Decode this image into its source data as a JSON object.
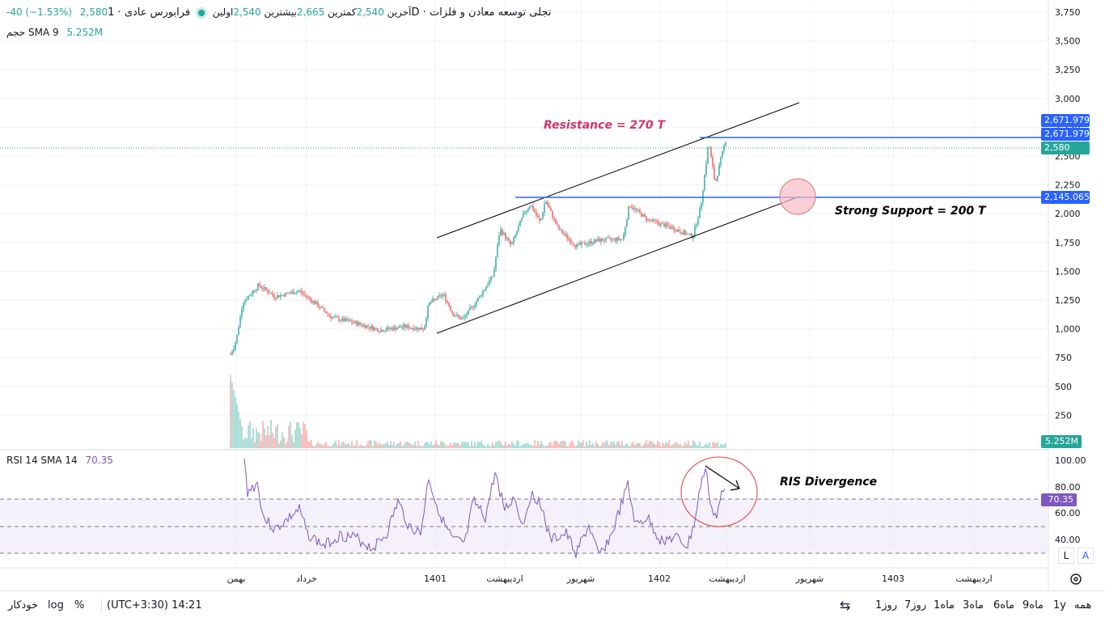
{
  "header": {
    "symbol_name": "فرابورس عادی · 1D · تجلی توسعه معادن و فلزات",
    "open_label": "اولین",
    "open_value": "2,540",
    "high_label": "بیشترین",
    "high_value": "2,665",
    "low_label": "کمترین",
    "low_value": "2,540",
    "close_label": "آخرین",
    "close_value": "2,580",
    "change": "-40  (−1.53%)"
  },
  "volume_legend": {
    "label": "حجم SMA 9",
    "value": "5.252M"
  },
  "rsi_legend": {
    "label": "RSI 14 SMA 14",
    "value": "70.35"
  },
  "price_axis": [
    "3,750",
    "3,500",
    "3,250",
    "3,000",
    "2,750",
    "2,500",
    "2,250",
    "2,000",
    "1,750",
    "1,500",
    "1,250",
    "1,000",
    "750",
    "500",
    "250"
  ],
  "rsi_axis": [
    "100.00",
    "80.00",
    "60.00",
    "40.00"
  ],
  "price_tags": {
    "upper1": "2,671.979",
    "upper2": "2,671.979",
    "last": "2,580",
    "support": "2,145.065",
    "volume": "5.252M",
    "rsi": "70.35"
  },
  "time_axis": [
    "بهمن",
    "خرداد",
    "1401",
    "اردیبهشت",
    "شهریور",
    "1402",
    "اردیبهشت",
    "شهریور",
    "1403",
    "اردیبهشت"
  ],
  "annotations": {
    "resistance": "Resistance  = 270 T",
    "support": "Strong Support = 200 T",
    "divergence": "RIS Divergence"
  },
  "bottom_bar": {
    "ranges": [
      "همه",
      "1y",
      "9ماه",
      "6ماه",
      "3ماه",
      "1ماه",
      "7روز",
      "1روز"
    ],
    "timezone": "(UTC+3:30)  14:21",
    "percent": "%",
    "log": "log",
    "auto": "خودکار",
    "scale_l": "L",
    "scale_a": "A"
  },
  "colors": {
    "up": "#26a69a",
    "down": "#ef5350",
    "level_line": "#2962ff",
    "rsi_line": "#7e57c2",
    "resistance_text": "#d6336c",
    "support_tag": "#2962ff"
  },
  "chart_data": {
    "type": "candlestick",
    "price_series_approx": [
      {
        "x": "بهمن",
        "y": 800
      },
      {
        "x": "خرداد",
        "y": 1250
      },
      {
        "x": "1401",
        "y": 1050
      },
      {
        "x": "اردیبهشت",
        "y": 1800
      },
      {
        "x": "شهریور",
        "y": 1700
      },
      {
        "x": "1402",
        "y": 1850
      },
      {
        "x": "اردیبهشت",
        "y": 2580
      }
    ],
    "horizontal_levels": [
      2671.979,
      2145.065
    ],
    "last_price": 2580,
    "ylim": [
      0,
      3750
    ],
    "rsi": {
      "ylim": [
        30,
        100
      ],
      "levels": [
        70,
        50,
        30
      ],
      "last": 70.35
    }
  }
}
